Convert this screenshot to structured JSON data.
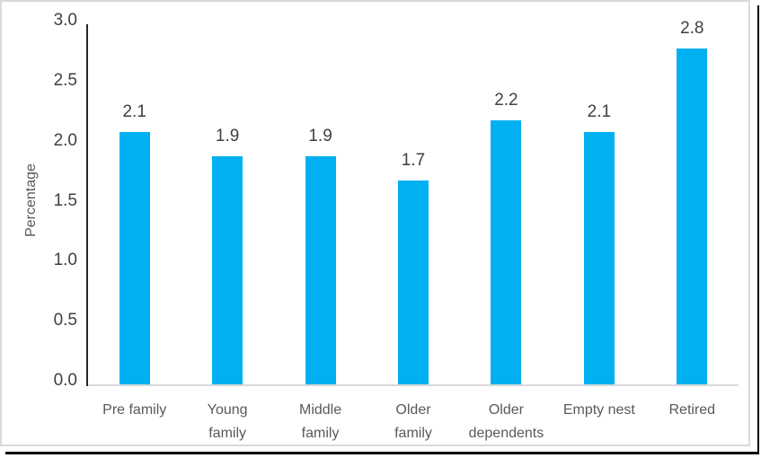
{
  "chart_data": {
    "type": "bar",
    "title": "",
    "xlabel": "",
    "ylabel": "Percentage",
    "categories": [
      "Pre family",
      "Young\nfamily",
      "Middle\nfamily",
      "Older\nfamily",
      "Older\ndependents",
      "Empty nest",
      "Retired"
    ],
    "values": [
      2.1,
      1.9,
      1.9,
      1.7,
      2.2,
      2.1,
      2.8
    ],
    "data_labels": [
      "2.1",
      "1.9",
      "1.9",
      "1.7",
      "2.2",
      "2.1",
      "2.8"
    ],
    "ylim": [
      0,
      3
    ],
    "ytick_labels": [
      "0.0",
      "0.5",
      "1.0",
      "1.5",
      "2.0",
      "2.5",
      "3.0"
    ],
    "grid": false,
    "legend": false,
    "colors": {
      "bar": "#00B0F0",
      "data_label": "#404040",
      "tick_label": "#404040",
      "category_label": "#595959",
      "axis_title": "#595959",
      "y_axis_line": "#262626",
      "x_axis_line": "#D9D9D9",
      "chart_border": "#D9D9D9",
      "outer_border": "#000000",
      "background": "#FFFFFF"
    }
  }
}
